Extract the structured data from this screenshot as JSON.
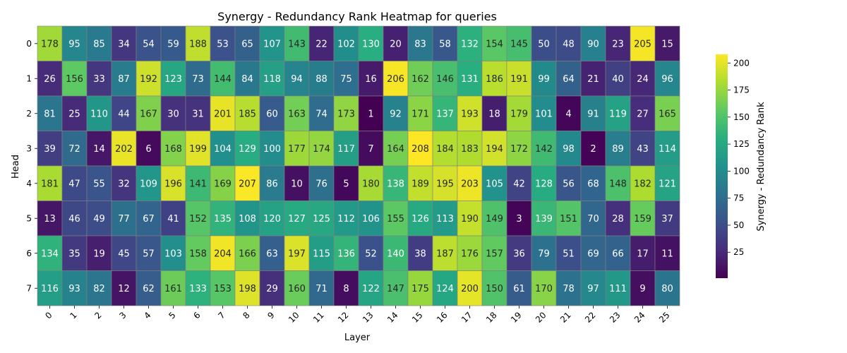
{
  "chart_data": {
    "type": "heatmap",
    "title": "Synergy - Redundancy Rank Heatmap for queries",
    "xlabel": "Layer",
    "ylabel": "Head",
    "colorbar_label": "Synergy - Redundancy Rank",
    "colormap": "viridis",
    "vmin": 1,
    "vmax": 208,
    "colorbar_ticks": [
      25,
      50,
      75,
      100,
      125,
      150,
      175,
      200
    ],
    "x_labels": [
      "0",
      "1",
      "2",
      "3",
      "4",
      "5",
      "6",
      "7",
      "8",
      "9",
      "10",
      "11",
      "12",
      "13",
      "14",
      "15",
      "16",
      "17",
      "18",
      "19",
      "20",
      "21",
      "22",
      "23",
      "24",
      "25"
    ],
    "y_labels": [
      "0",
      "1",
      "2",
      "3",
      "4",
      "5",
      "6",
      "7"
    ],
    "values": [
      [
        178,
        95,
        85,
        34,
        54,
        59,
        188,
        53,
        65,
        107,
        143,
        22,
        102,
        130,
        20,
        83,
        58,
        132,
        154,
        145,
        50,
        48,
        90,
        23,
        205,
        15
      ],
      [
        26,
        156,
        33,
        87,
        192,
        123,
        73,
        144,
        84,
        118,
        94,
        88,
        75,
        16,
        206,
        162,
        146,
        131,
        186,
        191,
        99,
        64,
        21,
        40,
        24,
        96
      ],
      [
        81,
        25,
        110,
        44,
        167,
        30,
        31,
        201,
        185,
        60,
        163,
        74,
        173,
        1,
        92,
        171,
        137,
        193,
        18,
        179,
        101,
        4,
        91,
        119,
        27,
        165
      ],
      [
        39,
        72,
        14,
        202,
        6,
        168,
        199,
        104,
        129,
        100,
        177,
        174,
        117,
        7,
        164,
        208,
        184,
        183,
        194,
        172,
        142,
        98,
        2,
        89,
        43,
        114
      ],
      [
        181,
        47,
        55,
        32,
        109,
        196,
        141,
        169,
        207,
        86,
        10,
        76,
        5,
        180,
        138,
        189,
        195,
        203,
        105,
        42,
        128,
        56,
        68,
        148,
        182,
        121
      ],
      [
        13,
        46,
        49,
        77,
        67,
        41,
        152,
        135,
        108,
        120,
        127,
        125,
        112,
        106,
        155,
        126,
        113,
        190,
        149,
        3,
        139,
        151,
        70,
        28,
        159,
        37
      ],
      [
        134,
        35,
        19,
        45,
        57,
        103,
        158,
        204,
        166,
        63,
        197,
        115,
        136,
        52,
        140,
        38,
        187,
        176,
        157,
        36,
        79,
        51,
        69,
        66,
        17,
        11
      ],
      [
        116,
        93,
        82,
        12,
        62,
        161,
        133,
        153,
        198,
        29,
        160,
        71,
        8,
        122,
        147,
        175,
        124,
        200,
        150,
        61,
        170,
        78,
        97,
        111,
        9,
        80
      ]
    ]
  }
}
